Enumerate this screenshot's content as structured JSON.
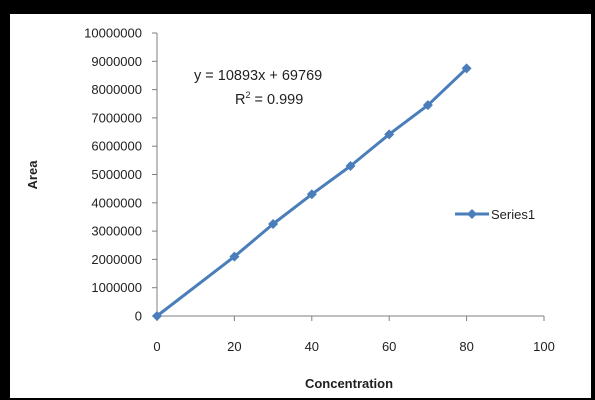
{
  "chart_data": {
    "type": "scatter",
    "title": "",
    "xlabel": "Concentration",
    "ylabel": "Area",
    "xlim": [
      0,
      100
    ],
    "ylim": [
      0,
      10000000
    ],
    "x_ticks": [
      "0",
      "20",
      "40",
      "60",
      "80",
      "100"
    ],
    "y_ticks": [
      "0",
      "1000000",
      "2000000",
      "3000000",
      "4000000",
      "5000000",
      "6000000",
      "7000000",
      "8000000",
      "9000000",
      "10000000"
    ],
    "grid": false,
    "legend_position": "right",
    "series": [
      {
        "name": "Series1",
        "color": "#4a7ebb",
        "marker": "diamond",
        "x": [
          0,
          20,
          30,
          40,
          50,
          60,
          70,
          80
        ],
        "y": [
          0,
          2100000,
          3250000,
          4300000,
          5300000,
          6420000,
          7450000,
          8750000
        ]
      }
    ],
    "annotations": {
      "equation": "y = 10893x + 69769",
      "r2_label": "R",
      "r2_sup": "2",
      "r2_value": " = 0.999"
    }
  }
}
